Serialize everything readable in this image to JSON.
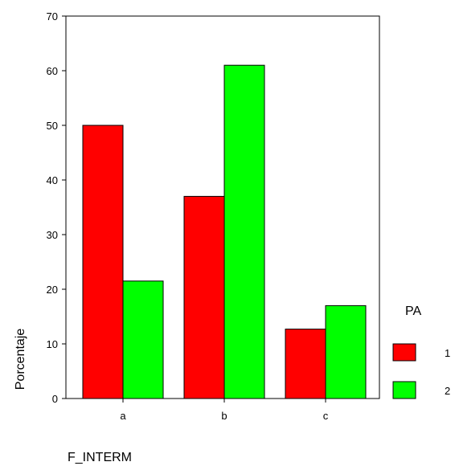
{
  "chart_data": {
    "type": "bar",
    "title": "",
    "xlabel": "F_INTERM",
    "ylabel": "Porcentaje",
    "categories": [
      "a",
      "b",
      "c"
    ],
    "series": [
      {
        "name": "1",
        "values": [
          50.0,
          37.0,
          12.7
        ],
        "color": "#ff0000"
      },
      {
        "name": "2",
        "values": [
          21.5,
          61.0,
          17.0
        ],
        "color": "#00ff00"
      }
    ],
    "ylim": [
      0,
      70
    ],
    "yticks": [
      "0",
      "10",
      "20",
      "30",
      "40",
      "50",
      "60",
      "70"
    ],
    "grid": false,
    "legend": {
      "title": "PA",
      "position": "right"
    }
  }
}
